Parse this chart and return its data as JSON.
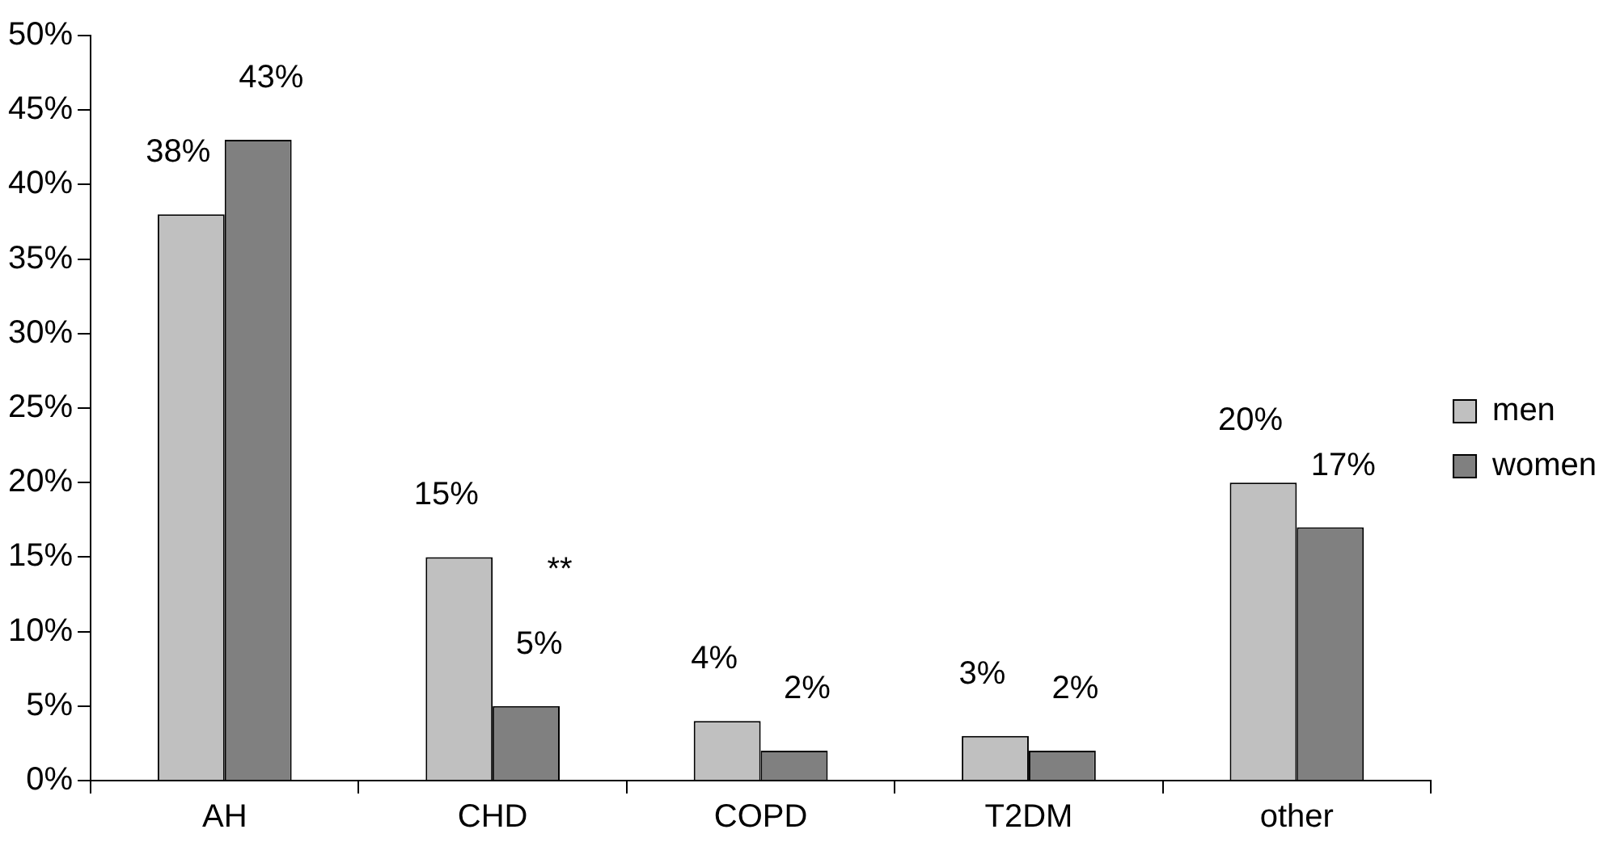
{
  "chart_data": {
    "type": "bar",
    "categories": [
      "AH",
      "CHD",
      "COPD",
      "T2DM",
      "other"
    ],
    "series": [
      {
        "name": "men",
        "color": "#c0c0c0",
        "values": [
          38,
          15,
          4,
          3,
          20
        ],
        "value_labels": [
          "38%",
          "15%",
          "4%",
          "3%",
          "20%"
        ]
      },
      {
        "name": "women",
        "color": "#808080",
        "values": [
          43,
          5,
          2,
          2,
          17
        ],
        "value_labels": [
          "43%",
          "5%",
          "2%",
          "2%",
          "17%"
        ]
      }
    ],
    "ylim": [
      0,
      50
    ],
    "yticks": [
      {
        "value": 0,
        "label": "0%"
      },
      {
        "value": 5,
        "label": "5%"
      },
      {
        "value": 10,
        "label": "10%"
      },
      {
        "value": 15,
        "label": "15%"
      },
      {
        "value": 20,
        "label": "20%"
      },
      {
        "value": 25,
        "label": "25%"
      },
      {
        "value": 30,
        "label": "30%"
      },
      {
        "value": 35,
        "label": "35%"
      },
      {
        "value": 40,
        "label": "40%"
      },
      {
        "value": 45,
        "label": "45%"
      },
      {
        "value": 50,
        "label": "50%"
      }
    ],
    "annotations": [
      {
        "text": "**",
        "x": "CHD",
        "y": 13
      }
    ],
    "grid": false,
    "legend": "right"
  }
}
